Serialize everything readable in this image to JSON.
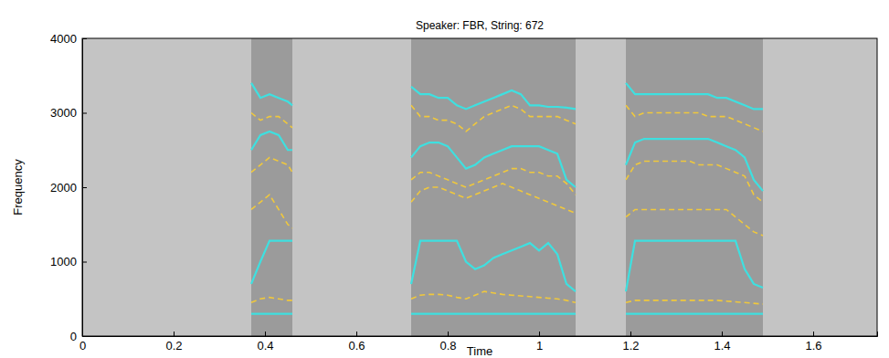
{
  "chart_data": {
    "type": "line",
    "title": "Speaker: FBR,  String: 672",
    "x_label": "Time",
    "y_label": "Frequency",
    "xlim": [
      0,
      1.74
    ],
    "ylim": [
      0,
      4000
    ],
    "xticks": [
      0,
      0.2,
      0.4,
      0.6,
      0.8,
      1,
      1.2,
      1.4,
      1.6
    ],
    "yticks": [
      0,
      1000,
      2000,
      3000,
      4000
    ],
    "grid": false,
    "x": [
      0.37,
      0.39,
      0.41,
      0.43,
      0.45,
      0.46,
      0.59,
      0.72,
      0.74,
      0.76,
      0.78,
      0.8,
      0.82,
      0.84,
      0.86,
      0.88,
      0.9,
      0.92,
      0.94,
      0.96,
      0.98,
      1.0,
      1.02,
      1.04,
      1.06,
      1.08,
      1.13,
      1.19,
      1.21,
      1.23,
      1.25,
      1.27,
      1.29,
      1.31,
      1.33,
      1.35,
      1.37,
      1.39,
      1.41,
      1.43,
      1.45,
      1.47,
      1.49
    ],
    "series": [
      {
        "color": "#3ee0e0",
        "line_style": "solid",
        "values": [
          300,
          300,
          300,
          300,
          300,
          300,
          null,
          300,
          300,
          300,
          300,
          300,
          300,
          300,
          300,
          300,
          300,
          300,
          300,
          300,
          300,
          300,
          300,
          300,
          300,
          300,
          null,
          300,
          300,
          300,
          300,
          300,
          300,
          300,
          300,
          300,
          300,
          300,
          300,
          300,
          300,
          300,
          300
        ]
      },
      {
        "color": "#3ee0e0",
        "line_style": "solid",
        "values": [
          700,
          1000,
          1280,
          1280,
          1280,
          1280,
          null,
          700,
          1280,
          1280,
          1280,
          1280,
          1280,
          1000,
          900,
          950,
          1050,
          1100,
          1150,
          1200,
          1250,
          1150,
          1250,
          1100,
          700,
          600,
          null,
          600,
          1280,
          1280,
          1280,
          1280,
          1280,
          1280,
          1280,
          1280,
          1280,
          1280,
          1280,
          1280,
          900,
          700,
          650
        ]
      },
      {
        "color": "#3ee0e0",
        "line_style": "solid",
        "values": [
          2500,
          2700,
          2750,
          2700,
          2500,
          2500,
          null,
          2400,
          2550,
          2600,
          2600,
          2550,
          2400,
          2250,
          2300,
          2400,
          2450,
          2500,
          2550,
          2550,
          2550,
          2550,
          2500,
          2450,
          2100,
          2000,
          null,
          2300,
          2600,
          2650,
          2650,
          2650,
          2650,
          2650,
          2650,
          2650,
          2650,
          2600,
          2550,
          2500,
          2400,
          2100,
          1950
        ]
      },
      {
        "color": "#3ee0e0",
        "line_style": "solid",
        "values": [
          3400,
          3200,
          3250,
          3200,
          3150,
          3100,
          null,
          3350,
          3250,
          3250,
          3200,
          3200,
          3100,
          3050,
          3100,
          3150,
          3200,
          3250,
          3300,
          3250,
          3100,
          3100,
          3080,
          3080,
          3070,
          3050,
          null,
          3400,
          3250,
          3250,
          3250,
          3250,
          3250,
          3250,
          3250,
          3250,
          3250,
          3200,
          3200,
          3150,
          3100,
          3050,
          3050
        ]
      },
      {
        "color": "#f0c83c",
        "line_style": "dashed",
        "values": [
          450,
          500,
          520,
          500,
          480,
          480,
          null,
          500,
          550,
          560,
          560,
          550,
          520,
          500,
          550,
          600,
          580,
          560,
          550,
          540,
          530,
          520,
          510,
          500,
          480,
          450,
          null,
          450,
          480,
          480,
          480,
          480,
          480,
          480,
          480,
          480,
          480,
          480,
          470,
          460,
          450,
          440,
          430
        ]
      },
      {
        "color": "#f0c83c",
        "line_style": "dashed",
        "values": [
          1700,
          1800,
          1900,
          1700,
          1500,
          1450,
          null,
          1800,
          1950,
          2000,
          2000,
          1950,
          1900,
          1850,
          1900,
          1950,
          2000,
          2050,
          2000,
          1950,
          1900,
          1850,
          1800,
          1750,
          1700,
          1650,
          null,
          1600,
          1700,
          1700,
          1700,
          1700,
          1700,
          1700,
          1700,
          1700,
          1700,
          1700,
          1700,
          1600,
          1500,
          1400,
          1350
        ]
      },
      {
        "color": "#f0c83c",
        "line_style": "dashed",
        "values": [
          2200,
          2300,
          2400,
          2350,
          2300,
          2200,
          null,
          2100,
          2200,
          2200,
          2150,
          2100,
          2050,
          2000,
          2050,
          2100,
          2150,
          2200,
          2250,
          2250,
          2200,
          2200,
          2150,
          2150,
          2050,
          1900,
          null,
          2100,
          2300,
          2350,
          2350,
          2350,
          2350,
          2350,
          2350,
          2300,
          2300,
          2300,
          2250,
          2200,
          2150,
          1900,
          1800
        ]
      },
      {
        "color": "#f0c83c",
        "line_style": "dashed",
        "values": [
          3000,
          2900,
          2950,
          2950,
          2850,
          2800,
          null,
          3100,
          2950,
          2950,
          2900,
          2900,
          2850,
          2750,
          2850,
          2950,
          3000,
          3050,
          3100,
          3050,
          2950,
          2950,
          2950,
          2950,
          2900,
          2850,
          null,
          3100,
          2950,
          3000,
          3000,
          3000,
          3000,
          3000,
          3000,
          3000,
          2950,
          2950,
          2950,
          2900,
          2850,
          2800,
          2750
        ]
      }
    ]
  }
}
